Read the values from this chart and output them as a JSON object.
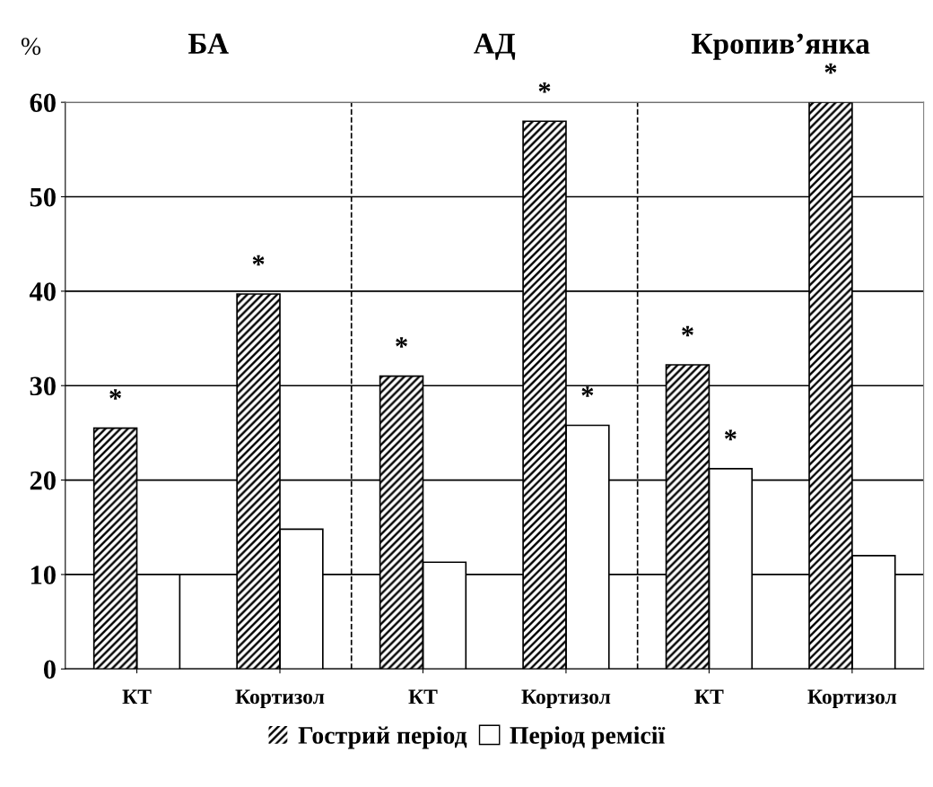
{
  "chart_data": {
    "type": "bar",
    "ylabel": "%",
    "categories": [
      "КТ",
      "Кортизол",
      "КТ",
      "Кортизол",
      "КТ",
      "Кортизол"
    ],
    "series": [
      {
        "name": "Гострий період",
        "color": "#000000",
        "values": [
          25.5,
          39.7,
          31,
          58,
          32.2,
          60
        ],
        "value_labels": [
          "*",
          "*",
          "*",
          "*",
          "*",
          "*"
        ]
      },
      {
        "name": "Період ремісії",
        "color": "#ffffff",
        "values": [
          10,
          14.8,
          11.3,
          25.8,
          21.2,
          12
        ],
        "value_labels": [
          null,
          null,
          null,
          "*",
          "*",
          null
        ]
      }
    ],
    "annotations": [
      "БА",
      "АД",
      "Кропив’янка"
    ],
    "ylim": [
      0,
      60
    ],
    "yticks": [
      0,
      10,
      20,
      30,
      40,
      50,
      60
    ],
    "grid": "y",
    "legend": "bottom"
  }
}
